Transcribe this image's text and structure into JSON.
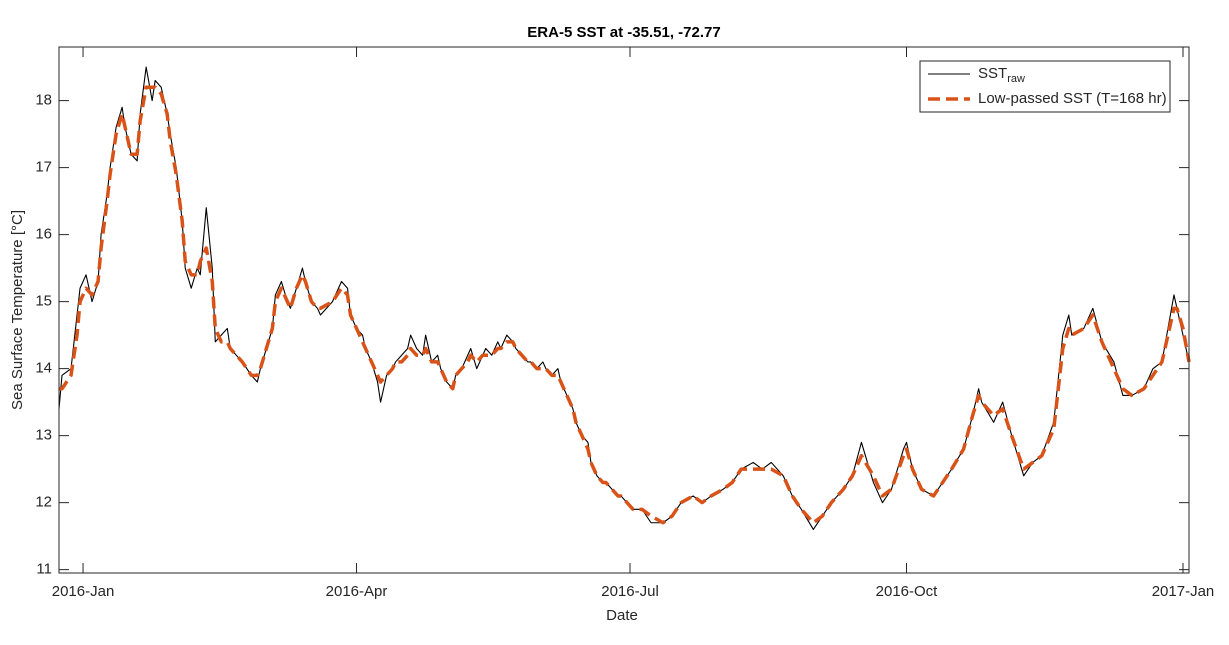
{
  "chart_data": {
    "type": "line",
    "title": "ERA-5 SST at -35.51, -72.77",
    "xlabel": "Date",
    "ylabel": "Sea Surface Temperature [°C]",
    "x": [
      -8,
      -7,
      -4,
      -2,
      -1,
      1,
      3,
      5,
      6,
      8,
      9,
      11,
      13,
      14,
      16,
      18,
      19,
      21,
      23,
      24,
      26,
      28,
      29,
      31,
      33,
      34,
      36,
      38,
      39,
      41,
      43,
      44,
      46,
      48,
      49,
      53,
      56,
      58,
      59,
      61,
      63,
      64,
      66,
      68,
      69,
      71,
      73,
      74,
      76,
      78,
      79,
      83,
      86,
      88,
      89,
      91,
      93,
      94,
      96,
      98,
      99,
      101,
      103,
      104,
      106,
      108,
      109,
      111,
      113,
      114,
      116,
      118,
      119,
      121,
      123,
      124,
      126,
      128,
      129,
      131,
      133,
      134,
      136,
      138,
      139,
      141,
      143,
      144,
      146,
      148,
      149,
      151,
      153,
      154,
      156,
      158,
      159,
      161,
      163,
      164,
      166,
      168,
      169,
      171,
      173,
      174,
      176,
      178,
      179,
      181,
      183,
      186,
      189,
      193,
      196,
      199,
      203,
      206,
      209,
      213,
      216,
      219,
      223,
      226,
      229,
      233,
      236,
      239,
      243,
      246,
      249,
      253,
      256,
      259,
      263,
      266,
      269,
      273,
      274,
      276,
      279,
      283,
      286,
      289,
      293,
      296,
      298,
      299,
      303,
      306,
      309,
      313,
      316,
      319,
      323,
      326,
      328,
      329,
      333,
      336,
      339,
      343,
      346,
      349,
      353,
      356,
      359,
      363,
      364,
      366,
      368
    ],
    "series": [
      {
        "name": "SST_raw",
        "color": "#000000",
        "style": "solid",
        "values": [
          13.4,
          13.9,
          14.0,
          14.8,
          15.2,
          15.4,
          15.0,
          15.3,
          16.0,
          16.6,
          17.0,
          17.6,
          17.9,
          17.6,
          17.2,
          17.1,
          17.8,
          18.5,
          18.0,
          18.3,
          18.2,
          17.8,
          17.5,
          17.0,
          16.2,
          15.5,
          15.2,
          15.5,
          15.4,
          16.4,
          15.5,
          14.4,
          14.5,
          14.6,
          14.3,
          14.1,
          13.9,
          13.8,
          14.0,
          14.3,
          14.6,
          15.1,
          15.3,
          15.0,
          14.9,
          15.2,
          15.5,
          15.3,
          15.0,
          14.9,
          14.8,
          15.0,
          15.3,
          15.2,
          14.8,
          14.6,
          14.5,
          14.3,
          14.1,
          13.8,
          13.5,
          13.9,
          14.0,
          14.1,
          14.2,
          14.3,
          14.5,
          14.3,
          14.2,
          14.5,
          14.1,
          14.2,
          14.0,
          13.8,
          13.7,
          13.9,
          14.0,
          14.2,
          14.3,
          14.0,
          14.2,
          14.3,
          14.2,
          14.4,
          14.3,
          14.5,
          14.4,
          14.3,
          14.2,
          14.1,
          14.1,
          14.0,
          14.1,
          14.0,
          13.9,
          14.0,
          13.8,
          13.6,
          13.4,
          13.2,
          13.0,
          12.9,
          12.6,
          12.4,
          12.3,
          12.3,
          12.2,
          12.1,
          12.1,
          12.0,
          11.9,
          11.9,
          11.7,
          11.7,
          11.8,
          12.0,
          12.1,
          12.0,
          12.1,
          12.2,
          12.3,
          12.5,
          12.6,
          12.5,
          12.6,
          12.4,
          12.1,
          11.9,
          11.6,
          11.8,
          12.0,
          12.2,
          12.4,
          12.9,
          12.3,
          12.0,
          12.2,
          12.8,
          12.9,
          12.5,
          12.2,
          12.1,
          12.3,
          12.5,
          12.8,
          13.3,
          13.7,
          13.5,
          13.2,
          13.5,
          13.0,
          12.4,
          12.6,
          12.7,
          13.2,
          14.5,
          14.8,
          14.5,
          14.6,
          14.9,
          14.4,
          14.1,
          13.6,
          13.6,
          13.7,
          14.0,
          14.1,
          15.1,
          14.9,
          14.5,
          14.1
        ]
      },
      {
        "name": "Low-passed SST (T=168 hr)",
        "color": "#d95319",
        "style": "dashed",
        "values": [
          13.7,
          13.7,
          13.9,
          14.5,
          15.0,
          15.2,
          15.1,
          15.3,
          15.8,
          16.5,
          16.9,
          17.5,
          17.8,
          17.6,
          17.2,
          17.2,
          17.7,
          18.2,
          18.2,
          18.2,
          18.1,
          17.8,
          17.4,
          16.9,
          16.2,
          15.6,
          15.4,
          15.4,
          15.6,
          15.8,
          15.3,
          14.6,
          14.4,
          14.4,
          14.3,
          14.1,
          13.9,
          13.9,
          14.0,
          14.3,
          14.6,
          15.0,
          15.2,
          15.0,
          14.9,
          15.2,
          15.4,
          15.3,
          15.0,
          14.9,
          14.9,
          15.0,
          15.2,
          15.1,
          14.8,
          14.6,
          14.4,
          14.3,
          14.1,
          13.9,
          13.8,
          13.9,
          14.0,
          14.1,
          14.1,
          14.2,
          14.3,
          14.2,
          14.2,
          14.3,
          14.1,
          14.1,
          14.0,
          13.8,
          13.7,
          13.9,
          14.0,
          14.1,
          14.2,
          14.1,
          14.2,
          14.2,
          14.2,
          14.3,
          14.3,
          14.4,
          14.4,
          14.3,
          14.2,
          14.1,
          14.1,
          14.0,
          14.0,
          14.0,
          13.9,
          13.9,
          13.8,
          13.6,
          13.4,
          13.2,
          13.0,
          12.8,
          12.6,
          12.4,
          12.3,
          12.3,
          12.2,
          12.1,
          12.1,
          12.0,
          11.9,
          11.9,
          11.8,
          11.7,
          11.8,
          12.0,
          12.1,
          12.0,
          12.1,
          12.2,
          12.3,
          12.5,
          12.5,
          12.5,
          12.5,
          12.4,
          12.1,
          11.9,
          11.7,
          11.8,
          12.0,
          12.2,
          12.4,
          12.7,
          12.4,
          12.1,
          12.2,
          12.7,
          12.8,
          12.5,
          12.2,
          12.1,
          12.3,
          12.5,
          12.8,
          13.3,
          13.6,
          13.5,
          13.3,
          13.4,
          13.0,
          12.5,
          12.6,
          12.7,
          13.1,
          14.3,
          14.6,
          14.5,
          14.6,
          14.8,
          14.4,
          14.0,
          13.7,
          13.6,
          13.7,
          13.9,
          14.1,
          14.9,
          14.9,
          14.6,
          14.1
        ]
      }
    ],
    "xlim": [
      -8,
      368
    ],
    "xticks": [
      {
        "value": 0,
        "label": "2016-Jan"
      },
      {
        "value": 91,
        "label": "2016-Apr"
      },
      {
        "value": 182,
        "label": "2016-Jul"
      },
      {
        "value": 274,
        "label": "2016-Oct"
      },
      {
        "value": 366,
        "label": "2017-Jan"
      }
    ],
    "ylim": [
      10.95,
      18.8
    ],
    "yticks": [
      11,
      12,
      13,
      14,
      15,
      16,
      17,
      18
    ],
    "grid": false,
    "legend": "top-right"
  }
}
